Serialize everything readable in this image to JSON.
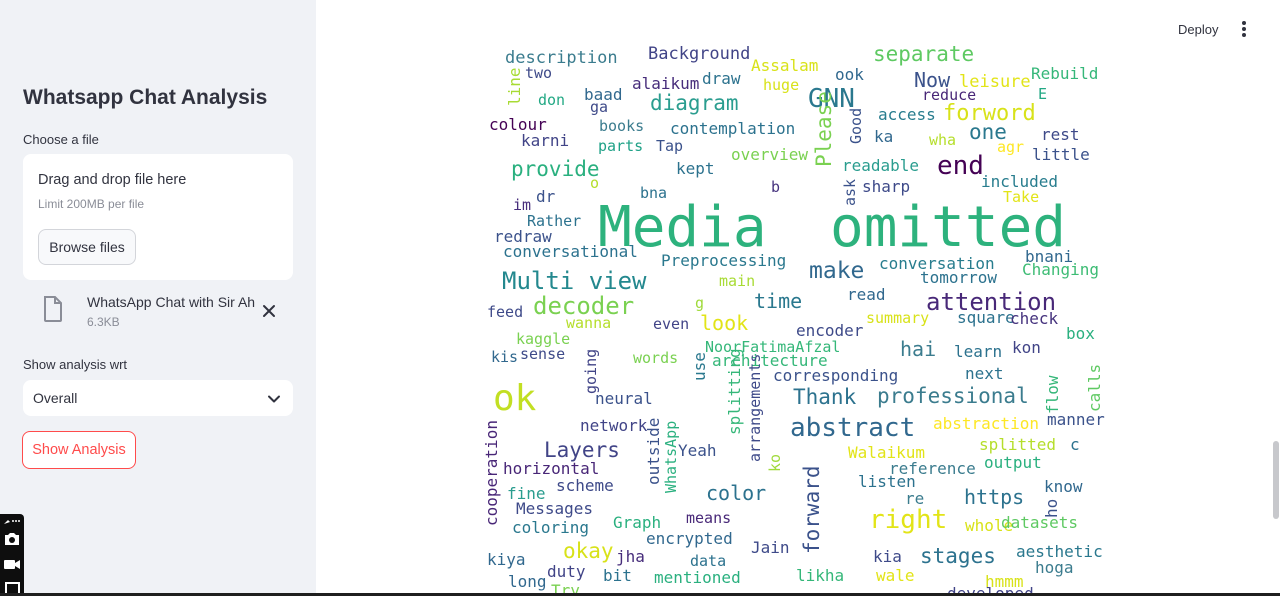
{
  "sidebar": {
    "title": "Whatsapp Chat Analysis",
    "upload_label": "Choose a file",
    "dropzone_title": "Drag and drop file here",
    "dropzone_limit": "Limit 200MB per file",
    "browse_label": "Browse files",
    "uploaded_file": {
      "name": "WhatsApp Chat with Sir Ahmad",
      "size": "6.3KB"
    },
    "analysis_label": "Show analysis wrt",
    "analysis_value": "Overall",
    "show_button": "Show Analysis"
  },
  "header": {
    "deploy_label": "Deploy"
  },
  "colors": {
    "accent": "#ff4b4b",
    "sidebar_bg": "#f0f2f6",
    "text": "#31333f"
  },
  "wordcloud": {
    "words": [
      {
        "text": "description",
        "color": "#3b7c8e"
      },
      {
        "text": "Background",
        "color": "#414487"
      },
      {
        "text": "separate",
        "color": "#5ec962"
      },
      {
        "text": "line",
        "color": "#a8db34"
      },
      {
        "text": "two",
        "color": "#3e4a89"
      },
      {
        "text": "alaikum",
        "color": "#472d7b"
      },
      {
        "text": "draw",
        "color": "#2c728e"
      },
      {
        "text": "Assalam",
        "color": "#d8e219"
      },
      {
        "text": "ook",
        "color": "#31688e"
      },
      {
        "text": "Now",
        "color": "#3b528b"
      },
      {
        "text": "leisure",
        "color": "#e2e418"
      },
      {
        "text": "Rebuild",
        "color": "#35b779"
      },
      {
        "text": "don",
        "color": "#22a884"
      },
      {
        "text": "baad",
        "color": "#31688e"
      },
      {
        "text": "ga",
        "color": "#3e4a89"
      },
      {
        "text": "GNN",
        "color": "#2a788e"
      },
      {
        "text": "huge",
        "color": "#d8e219"
      },
      {
        "text": "reduce",
        "color": "#482677"
      },
      {
        "text": "E",
        "color": "#22a884"
      },
      {
        "text": "diagram",
        "color": "#2a9d8f"
      },
      {
        "text": "access",
        "color": "#287d8e"
      },
      {
        "text": "forword",
        "color": "#d8e219"
      },
      {
        "text": "colour",
        "color": "#440154"
      },
      {
        "text": "books",
        "color": "#3b7c8e"
      },
      {
        "text": "contemplation",
        "color": "#2c728e"
      },
      {
        "text": "Please",
        "color": "#7ad151"
      },
      {
        "text": "Good",
        "color": "#3b528b"
      },
      {
        "text": "ka",
        "color": "#31688e"
      },
      {
        "text": "wha",
        "color": "#b5de2b"
      },
      {
        "text": "one",
        "color": "#2a788e"
      },
      {
        "text": "rest",
        "color": "#3e4a89"
      },
      {
        "text": "karni",
        "color": "#414487"
      },
      {
        "text": "parts",
        "color": "#1fa187"
      },
      {
        "text": "Tap",
        "color": "#3b528b"
      },
      {
        "text": "agr",
        "color": "#fde725"
      },
      {
        "text": "little",
        "color": "#3b528b"
      },
      {
        "text": "overview",
        "color": "#7ad151"
      },
      {
        "text": "end",
        "color": "#440154"
      },
      {
        "text": "provide",
        "color": "#2ab07f"
      },
      {
        "text": "kept",
        "color": "#2c728e"
      },
      {
        "text": "readable",
        "color": "#2a9d8f"
      },
      {
        "text": "o",
        "color": "#b5de2b"
      },
      {
        "text": "b",
        "color": "#46337e"
      },
      {
        "text": "sharp",
        "color": "#3e4a89"
      },
      {
        "text": "included",
        "color": "#287d8e"
      },
      {
        "text": "dr",
        "color": "#3b528b"
      },
      {
        "text": "bna",
        "color": "#2c728e"
      },
      {
        "text": "ask",
        "color": "#3b528b"
      },
      {
        "text": "Take",
        "color": "#e2e418"
      },
      {
        "text": "im",
        "color": "#472d7b"
      },
      {
        "text": "Media",
        "color": "#2db27d"
      },
      {
        "text": "omitted",
        "color": "#2db27d"
      },
      {
        "text": "Rather",
        "color": "#2c728e"
      },
      {
        "text": "redraw",
        "color": "#3b528b"
      },
      {
        "text": "bnani",
        "color": "#31688e"
      },
      {
        "text": "conversational",
        "color": "#2c728e"
      },
      {
        "text": "Preprocessing",
        "color": "#2a788e"
      },
      {
        "text": "conversation",
        "color": "#287d8e"
      },
      {
        "text": "Changing",
        "color": "#3dbc74"
      },
      {
        "text": "Multi view",
        "color": "#23888e"
      },
      {
        "text": "make",
        "color": "#31688e"
      },
      {
        "text": "tomorrow",
        "color": "#2c728e"
      },
      {
        "text": "main",
        "color": "#a8db34"
      },
      {
        "text": "read",
        "color": "#31688e"
      },
      {
        "text": "attention",
        "color": "#482878"
      },
      {
        "text": "decoder",
        "color": "#7ad151"
      },
      {
        "text": "g",
        "color": "#9fda3a"
      },
      {
        "text": "time",
        "color": "#2a788e"
      },
      {
        "text": "feed",
        "color": "#3e4a89"
      },
      {
        "text": "wanna",
        "color": "#b5de2b"
      },
      {
        "text": "even",
        "color": "#414487"
      },
      {
        "text": "look",
        "color": "#e2e418"
      },
      {
        "text": "summary",
        "color": "#d8e219"
      },
      {
        "text": "square",
        "color": "#2c728e"
      },
      {
        "text": "check",
        "color": "#46337e"
      },
      {
        "text": "kaggle",
        "color": "#7ad151"
      },
      {
        "text": "encoder",
        "color": "#3e4a89"
      },
      {
        "text": "box",
        "color": "#2ab07f"
      },
      {
        "text": "NoorFatimaAfzal",
        "color": "#35b779"
      },
      {
        "text": "hai",
        "color": "#3b7c8e"
      },
      {
        "text": "learn",
        "color": "#2c728e"
      },
      {
        "text": "kon",
        "color": "#414487"
      },
      {
        "text": "kis",
        "color": "#31688e"
      },
      {
        "text": "sense",
        "color": "#3e4a89"
      },
      {
        "text": "going",
        "color": "#414487"
      },
      {
        "text": "words",
        "color": "#7ad151"
      },
      {
        "text": "use",
        "color": "#2a788e"
      },
      {
        "text": "architecture",
        "color": "#35b779"
      },
      {
        "text": "corresponding",
        "color": "#3b528b"
      },
      {
        "text": "next",
        "color": "#2c728e"
      },
      {
        "text": "flow",
        "color": "#35b779"
      },
      {
        "text": "calls",
        "color": "#5ec962"
      },
      {
        "text": "ok",
        "color": "#c2df23"
      },
      {
        "text": "neural",
        "color": "#3b528b"
      },
      {
        "text": "Thank",
        "color": "#2c728e"
      },
      {
        "text": "professional",
        "color": "#3b7c8e"
      },
      {
        "text": "abstraction",
        "color": "#fde725"
      },
      {
        "text": "manner",
        "color": "#3b528b"
      },
      {
        "text": "network",
        "color": "#414487"
      },
      {
        "text": "splitting",
        "color": "#35b779"
      },
      {
        "text": "arrangements",
        "color": "#3e4a89"
      },
      {
        "text": "abstract",
        "color": "#31688e"
      },
      {
        "text": "cooperation",
        "color": "#482677"
      },
      {
        "text": "WhatsApp",
        "color": "#2ab07f"
      },
      {
        "text": "splitted",
        "color": "#b5de2b"
      },
      {
        "text": "c",
        "color": "#2c728e"
      },
      {
        "text": "Layers",
        "color": "#414487"
      },
      {
        "text": "outside",
        "color": "#3b528b"
      },
      {
        "text": "Yeah",
        "color": "#3b528b"
      },
      {
        "text": "Walaikum",
        "color": "#e2e418"
      },
      {
        "text": "reference",
        "color": "#3b7c8e"
      },
      {
        "text": "output",
        "color": "#2ab07f"
      },
      {
        "text": "horizontal",
        "color": "#482677"
      },
      {
        "text": "ko",
        "color": "#9fda3a"
      },
      {
        "text": "forward",
        "color": "#3b528b"
      },
      {
        "text": "listen",
        "color": "#2c728e"
      },
      {
        "text": "know",
        "color": "#31688e"
      },
      {
        "text": "scheme",
        "color": "#3e4a89"
      },
      {
        "text": "color",
        "color": "#2c728e"
      },
      {
        "text": "https",
        "color": "#2c728e"
      },
      {
        "text": "ho",
        "color": "#3b528b"
      },
      {
        "text": "fine",
        "color": "#2a9d8f"
      },
      {
        "text": "re",
        "color": "#3b7c8e"
      },
      {
        "text": "Messages",
        "color": "#3e4a89"
      },
      {
        "text": "right",
        "color": "#e2e418"
      },
      {
        "text": "whole",
        "color": "#d8e219"
      },
      {
        "text": "datasets",
        "color": "#5ec962"
      },
      {
        "text": "coloring",
        "color": "#2a788e"
      },
      {
        "text": "Graph",
        "color": "#2ab07f"
      },
      {
        "text": "means",
        "color": "#482878"
      },
      {
        "text": "encrypted",
        "color": "#31688e"
      },
      {
        "text": "Jain",
        "color": "#3e4a89"
      },
      {
        "text": "aesthetic",
        "color": "#2a788e"
      },
      {
        "text": "okay",
        "color": "#d8e219"
      },
      {
        "text": "kiya",
        "color": "#31688e"
      },
      {
        "text": "jha",
        "color": "#472d7b"
      },
      {
        "text": "data",
        "color": "#2c728e"
      },
      {
        "text": "kia",
        "color": "#3e4a89"
      },
      {
        "text": "stages",
        "color": "#2c728e"
      },
      {
        "text": "hoga",
        "color": "#3b7c8e"
      },
      {
        "text": "long",
        "color": "#31688e"
      },
      {
        "text": "duty",
        "color": "#414487"
      },
      {
        "text": "bit",
        "color": "#2c728e"
      },
      {
        "text": "mentioned",
        "color": "#2ab07f"
      },
      {
        "text": "likha",
        "color": "#35b779"
      },
      {
        "text": "wale",
        "color": "#e2e418"
      },
      {
        "text": "hmmm",
        "color": "#d8e219"
      },
      {
        "text": "Try",
        "color": "#7ad151"
      },
      {
        "text": "developed",
        "color": "#414487"
      }
    ]
  }
}
